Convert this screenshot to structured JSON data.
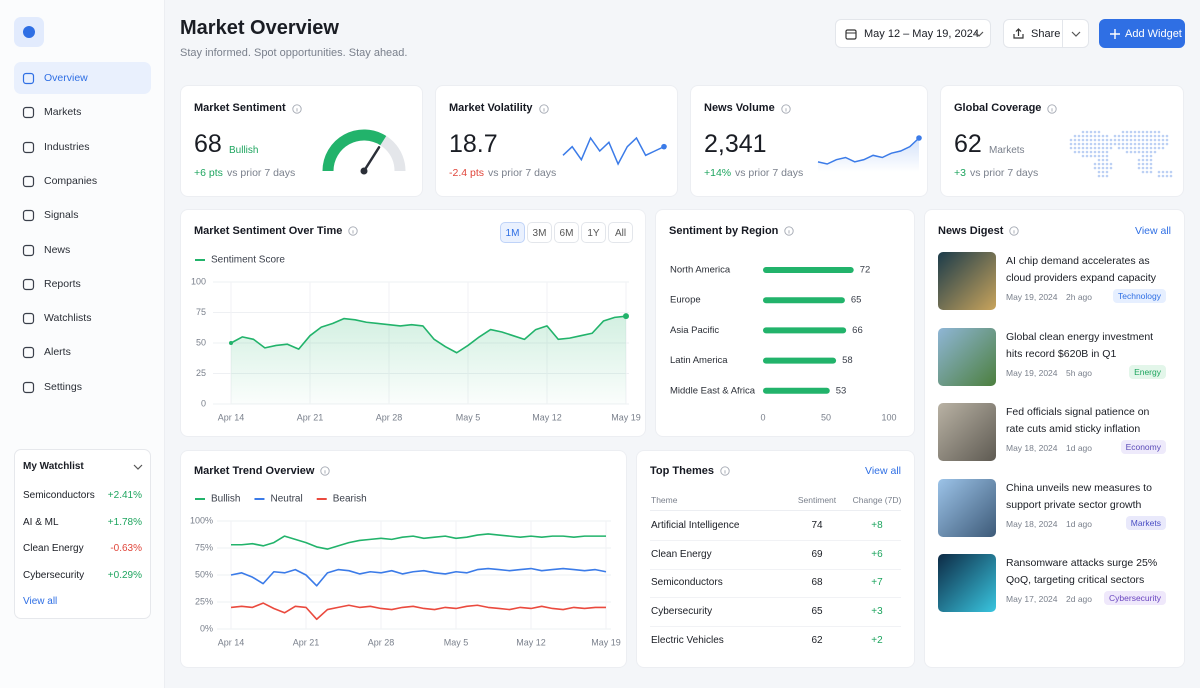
{
  "sidebar": {
    "nav": [
      "Overview",
      "Markets",
      "Industries",
      "Companies",
      "Signals",
      "News",
      "Reports",
      "Watchlists",
      "Alerts",
      "Settings"
    ],
    "active": "Overview",
    "watchlist": {
      "title": "My Watchlist",
      "items": [
        {
          "name": "Semiconductors",
          "change": "+2.41%"
        },
        {
          "name": "AI & ML",
          "change": "+1.78%"
        },
        {
          "name": "Clean Energy",
          "change": "-0.63%"
        },
        {
          "name": "Cybersecurity",
          "change": "+0.29%"
        }
      ],
      "view_all": "View all"
    }
  },
  "header": {
    "title": "Market Overview",
    "subtitle": "Stay informed. Spot opportunities. Stay ahead.",
    "date_range": "May 12 – May 19, 2024",
    "share": "Share",
    "add_widget": "Add Widget"
  },
  "kpis": [
    {
      "title": "Market Sentiment",
      "value": 68,
      "status": "Bullish",
      "change": "+6 pts",
      "note": "vs prior 7 days",
      "gauge_lim": [
        0,
        100
      ]
    },
    {
      "title": "Market Volatility",
      "value": 18.7,
      "change": "-2.4 pts",
      "note": "vs prior 7 days",
      "sparkline": [
        14,
        16,
        13,
        18,
        15,
        17,
        12,
        16,
        18,
        14,
        15,
        16
      ]
    },
    {
      "title": "News Volume",
      "value": 2341,
      "value_label": "2,341",
      "change": "+14%",
      "note": "vs prior 7 days",
      "sparkline": [
        10,
        9,
        11,
        12,
        10,
        11,
        13,
        12,
        14,
        15,
        17,
        21
      ]
    },
    {
      "title": "Global Coverage",
      "value": 62,
      "unit": "Markets",
      "change": "+3",
      "note": "vs prior 7 days"
    }
  ],
  "chart_data": [
    {
      "type": "line",
      "title": "Market Sentiment Over Time",
      "ranges": [
        "1M",
        "3M",
        "6M",
        "1Y",
        "All"
      ],
      "active_range": "1M",
      "area": true,
      "categories": [
        "Apr 14",
        null,
        null,
        null,
        null,
        null,
        null,
        "Apr 21",
        null,
        null,
        null,
        null,
        null,
        null,
        "Apr 28",
        null,
        null,
        null,
        null,
        null,
        null,
        "May 5",
        null,
        null,
        null,
        null,
        null,
        null,
        "May 12",
        null,
        null,
        null,
        null,
        null,
        null,
        "May 19"
      ],
      "series": [
        {
          "name": "Sentiment Score",
          "color": "#22b36b",
          "values": [
            50,
            55,
            53,
            46,
            48,
            49,
            45,
            56,
            63,
            66,
            70,
            69,
            67,
            66,
            65,
            64,
            65,
            64,
            53,
            47,
            42,
            48,
            55,
            61,
            59,
            56,
            53,
            61,
            64,
            53,
            54,
            56,
            58,
            68,
            71,
            72
          ]
        }
      ],
      "ylim": [
        0,
        100
      ],
      "yticks": [
        0,
        25,
        50,
        75,
        100
      ],
      "grid": true
    },
    {
      "type": "hbar",
      "title": "Sentiment by Region",
      "categories": [
        "North America",
        "Europe",
        "Asia Pacific",
        "Latin America",
        "Middle East & Africa"
      ],
      "values": [
        72,
        65,
        66,
        58,
        53
      ],
      "color": "#22b36b",
      "xlim": [
        0,
        100
      ],
      "xticks": [
        0,
        50,
        100
      ]
    },
    {
      "type": "line",
      "title": "Market Trend Overview",
      "area": false,
      "categories": [
        "Apr 14",
        null,
        null,
        null,
        null,
        null,
        null,
        "Apr 21",
        null,
        null,
        null,
        null,
        null,
        null,
        "Apr 28",
        null,
        null,
        null,
        null,
        null,
        null,
        "May 5",
        null,
        null,
        null,
        null,
        null,
        null,
        "May 12",
        null,
        null,
        null,
        null,
        null,
        null,
        "May 19"
      ],
      "series": [
        {
          "name": "Bullish",
          "color": "#22b36b",
          "values": [
            78,
            78,
            79,
            77,
            80,
            86,
            83,
            80,
            76,
            74,
            77,
            80,
            82,
            83,
            84,
            83,
            85,
            86,
            84,
            85,
            86,
            84,
            85,
            87,
            88,
            87,
            86,
            85,
            86,
            85,
            86,
            86,
            85,
            86,
            86,
            86
          ]
        },
        {
          "name": "Neutral",
          "color": "#3b7be8",
          "values": [
            50,
            52,
            48,
            42,
            53,
            52,
            55,
            50,
            40,
            52,
            55,
            54,
            51,
            53,
            52,
            54,
            51,
            53,
            54,
            52,
            51,
            53,
            52,
            55,
            56,
            55,
            54,
            55,
            56,
            54,
            55,
            56,
            55,
            54,
            55,
            53
          ]
        },
        {
          "name": "Bearish",
          "color": "#ea4a3e",
          "values": [
            20,
            21,
            20,
            24,
            19,
            15,
            21,
            20,
            9,
            18,
            20,
            22,
            20,
            21,
            19,
            18,
            20,
            21,
            19,
            18,
            20,
            19,
            21,
            22,
            20,
            19,
            18,
            20,
            19,
            21,
            19,
            18,
            20,
            19,
            20,
            20
          ]
        }
      ],
      "ylim": [
        0,
        100
      ],
      "yticks": [
        {
          "value": 0,
          "label": "0%"
        },
        {
          "value": 25,
          "label": "25%"
        },
        {
          "value": 50,
          "label": "50%"
        },
        {
          "value": 75,
          "label": "75%"
        },
        {
          "value": 100,
          "label": "100%"
        }
      ],
      "grid": true
    }
  ],
  "top_themes": {
    "title": "Top Themes",
    "view_all": "View all",
    "columns": [
      "Theme",
      "Sentiment",
      "Change (7D)"
    ],
    "rows": [
      [
        "Artificial Intelligence",
        74,
        "+8"
      ],
      [
        "Clean Energy",
        69,
        "+6"
      ],
      [
        "Semiconductors",
        68,
        "+7"
      ],
      [
        "Cybersecurity",
        65,
        "+3"
      ],
      [
        "Electric Vehicles",
        62,
        "+2"
      ]
    ]
  },
  "news": {
    "title": "News Digest",
    "view_all": "View all",
    "items": [
      {
        "title": "AI chip demand accelerates as cloud providers expand capacity",
        "date": "May 19, 2024",
        "ago": "2h ago",
        "tag": "Technology"
      },
      {
        "title": "Global clean energy investment hits record $620B in Q1",
        "date": "May 19, 2024",
        "ago": "5h ago",
        "tag": "Energy"
      },
      {
        "title": "Fed officials signal patience on rate cuts amid sticky inflation",
        "date": "May 18, 2024",
        "ago": "1d ago",
        "tag": "Economy"
      },
      {
        "title": "China unveils new measures to support private sector growth",
        "date": "May 18, 2024",
        "ago": "1d ago",
        "tag": "Markets"
      },
      {
        "title": "Ransomware attacks surge 25% QoQ, targeting critical sectors",
        "date": "May 17, 2024",
        "ago": "2d ago",
        "tag": "Cybersecurity"
      }
    ]
  }
}
